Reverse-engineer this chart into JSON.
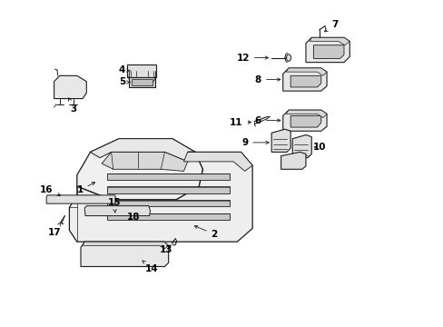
{
  "background_color": "#ffffff",
  "line_color": "#1a1a1a",
  "text_color": "#000000",
  "lw": 0.7,
  "fs": 7.5,
  "xlim": [
    0,
    10
  ],
  "ylim": [
    0,
    8.5
  ]
}
